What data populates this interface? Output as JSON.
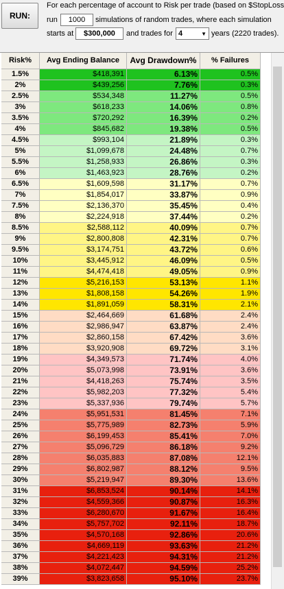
{
  "controls": {
    "button": "RUN:",
    "line1": "For each percentage of account to Risk per trade (based on $StopLoss):",
    "run_label": "run",
    "runs": "1000",
    "line2": "simulations of random trades, where each simulation",
    "start_label": "starts at",
    "start": "$300,000",
    "years_label": "and trades for",
    "years": "4",
    "line3": "years (2220 trades)."
  },
  "table": {
    "columns": [
      "Risk%",
      "Avg Ending Balance",
      "Avg Drawdown%",
      "% Failures"
    ],
    "rows": [
      [
        "1.5%",
        "$418,391",
        "6.13%",
        "0.5%"
      ],
      [
        "2%",
        "$439,256",
        "7.76%",
        "0.3%"
      ],
      [
        "2.5%",
        "$534,348",
        "11.27%",
        "0.5%"
      ],
      [
        "3%",
        "$618,233",
        "14.06%",
        "0.8%"
      ],
      [
        "3.5%",
        "$720,292",
        "16.39%",
        "0.2%"
      ],
      [
        "4%",
        "$845,682",
        "19.38%",
        "0.5%"
      ],
      [
        "4.5%",
        "$993,104",
        "21.89%",
        "0.3%"
      ],
      [
        "5%",
        "$1,099,678",
        "24.48%",
        "0.7%"
      ],
      [
        "5.5%",
        "$1,258,933",
        "26.86%",
        "0.3%"
      ],
      [
        "6%",
        "$1,463,923",
        "28.76%",
        "0.2%"
      ],
      [
        "6.5%",
        "$1,609,598",
        "31.17%",
        "0.7%"
      ],
      [
        "7%",
        "$1,854,017",
        "33.87%",
        "0.9%"
      ],
      [
        "7.5%",
        "$2,136,370",
        "35.45%",
        "0.4%"
      ],
      [
        "8%",
        "$2,224,918",
        "37.44%",
        "0.2%"
      ],
      [
        "8.5%",
        "$2,588,112",
        "40.09%",
        "0.7%"
      ],
      [
        "9%",
        "$2,800,808",
        "42.31%",
        "0.7%"
      ],
      [
        "9.5%",
        "$3,174,751",
        "43.72%",
        "0.6%"
      ],
      [
        "10%",
        "$3,445,912",
        "46.09%",
        "0.5%"
      ],
      [
        "11%",
        "$4,474,418",
        "49.05%",
        "0.9%"
      ],
      [
        "12%",
        "$5,216,153",
        "53.13%",
        "1.1%"
      ],
      [
        "13%",
        "$1,808,158",
        "54.26%",
        "1.9%"
      ],
      [
        "14%",
        "$1,891,059",
        "58.31%",
        "2.1%"
      ],
      [
        "15%",
        "$2,464,669",
        "61.68%",
        "2.4%"
      ],
      [
        "16%",
        "$2,986,947",
        "63.87%",
        "2.4%"
      ],
      [
        "17%",
        "$2,860,158",
        "67.42%",
        "3.6%"
      ],
      [
        "18%",
        "$3,920,908",
        "69.72%",
        "3.1%"
      ],
      [
        "19%",
        "$4,349,573",
        "71.74%",
        "4.0%"
      ],
      [
        "20%",
        "$5,073,998",
        "73.91%",
        "3.6%"
      ],
      [
        "21%",
        "$4,418,263",
        "75.74%",
        "3.5%"
      ],
      [
        "22%",
        "$5,982,203",
        "77.32%",
        "5.4%"
      ],
      [
        "23%",
        "$5,337,936",
        "79.74%",
        "5.7%"
      ],
      [
        "24%",
        "$5,951,531",
        "81.45%",
        "7.1%"
      ],
      [
        "25%",
        "$5,775,989",
        "82.73%",
        "5.9%"
      ],
      [
        "26%",
        "$6,199,453",
        "85.41%",
        "7.0%"
      ],
      [
        "27%",
        "$5,096,729",
        "86.18%",
        "9.2%"
      ],
      [
        "28%",
        "$6,035,883",
        "87.08%",
        "12.1%"
      ],
      [
        "29%",
        "$6,802,987",
        "88.12%",
        "9.5%"
      ],
      [
        "30%",
        "$5,219,947",
        "89.30%",
        "13.6%"
      ],
      [
        "31%",
        "$6,853,524",
        "90.14%",
        "14.1%"
      ],
      [
        "32%",
        "$4,559,366",
        "90.87%",
        "16.3%"
      ],
      [
        "33%",
        "$6,280,670",
        "91.67%",
        "16.4%"
      ],
      [
        "34%",
        "$5,757,702",
        "92.11%",
        "18.7%"
      ],
      [
        "35%",
        "$4,570,168",
        "92.86%",
        "20.6%"
      ],
      [
        "36%",
        "$4,669,119",
        "93.63%",
        "21.2%"
      ],
      [
        "37%",
        "$4,221,423",
        "94.31%",
        "21.2%"
      ],
      [
        "38%",
        "$4,072,447",
        "94.59%",
        "25.2%"
      ],
      [
        "39%",
        "$3,823,658",
        "95.10%",
        "23.7%"
      ]
    ]
  }
}
